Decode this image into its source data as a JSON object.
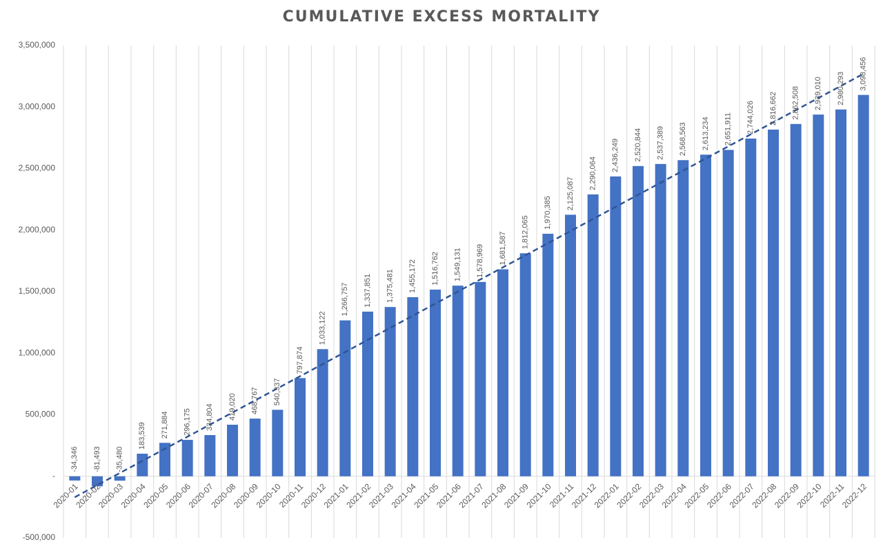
{
  "chart_data": {
    "type": "bar",
    "title": "CUMULATIVE EXCESS MORTALITY",
    "categories": [
      "2020-01",
      "2020-02",
      "2020-03",
      "2020-04",
      "2020-05",
      "2020-06",
      "2020-07",
      "2020-08",
      "2020-09",
      "2020-10",
      "2020-11",
      "2020-12",
      "2021-01",
      "2021-02",
      "2021-03",
      "2021-04",
      "2021-05",
      "2021-06",
      "2021-07",
      "2021-08",
      "2021-09",
      "2021-10",
      "2021-11",
      "2021-12",
      "2022-01",
      "2022-02",
      "2022-03",
      "2022-04",
      "2022-05",
      "2022-06",
      "2022-07",
      "2022-08",
      "2022-09",
      "2022-10",
      "2022-11",
      "2022-12"
    ],
    "values": [
      -34346,
      -81493,
      -35480,
      183539,
      271884,
      296175,
      334804,
      419020,
      468767,
      540337,
      797874,
      1033122,
      1266757,
      1337851,
      1375481,
      1455172,
      1516762,
      1549131,
      1578969,
      1681587,
      1812065,
      1970385,
      2125087,
      2290064,
      2436249,
      2520844,
      2537389,
      2568563,
      2613234,
      2651911,
      2744026,
      2816662,
      2862508,
      2939010,
      2980293,
      3098456
    ],
    "data_labels": [
      "-34,346",
      "-81,493",
      "-35,480",
      "183,539",
      "271,884",
      "296,175",
      "334,804",
      "419,020",
      "468,767",
      "540,337",
      "797,874",
      "1,033,122",
      "1,266,757",
      "1,337,851",
      "1,375,481",
      "1,455,172",
      "1,516,762",
      "1,549,131",
      "1,578,969",
      "1,681,587",
      "1,812,065",
      "1,970,385",
      "2,125,087",
      "2,290,064",
      "2,436,249",
      "2,520,844",
      "2,537,389",
      "2,568,563",
      "2,613,234",
      "2,651,911",
      "2,744,026",
      "2,816,662",
      "2,862,508",
      "2,939,010",
      "2,980,293",
      "3,098,456"
    ],
    "ylim": [
      -500000,
      3500000
    ],
    "yticks": [
      "-500,000",
      "-",
      "500,000",
      "1,000,000",
      "1,500,000",
      "2,000,000",
      "2,500,000",
      "3,000,000",
      "3,500,000"
    ],
    "ytick_values": [
      -500000,
      0,
      500000,
      1000000,
      1500000,
      2000000,
      2500000,
      3000000,
      3500000
    ],
    "xlabel": "",
    "ylabel": "",
    "trendline": {
      "style": "dashed",
      "kind": "linear",
      "start_value": -170000,
      "end_value": 3270000
    },
    "grid": "vertical",
    "legend": "none",
    "colors": {
      "bar": "#4472C4",
      "trendline": "#2F5597",
      "grid": "#D9D9D9",
      "text": "#595959"
    }
  }
}
